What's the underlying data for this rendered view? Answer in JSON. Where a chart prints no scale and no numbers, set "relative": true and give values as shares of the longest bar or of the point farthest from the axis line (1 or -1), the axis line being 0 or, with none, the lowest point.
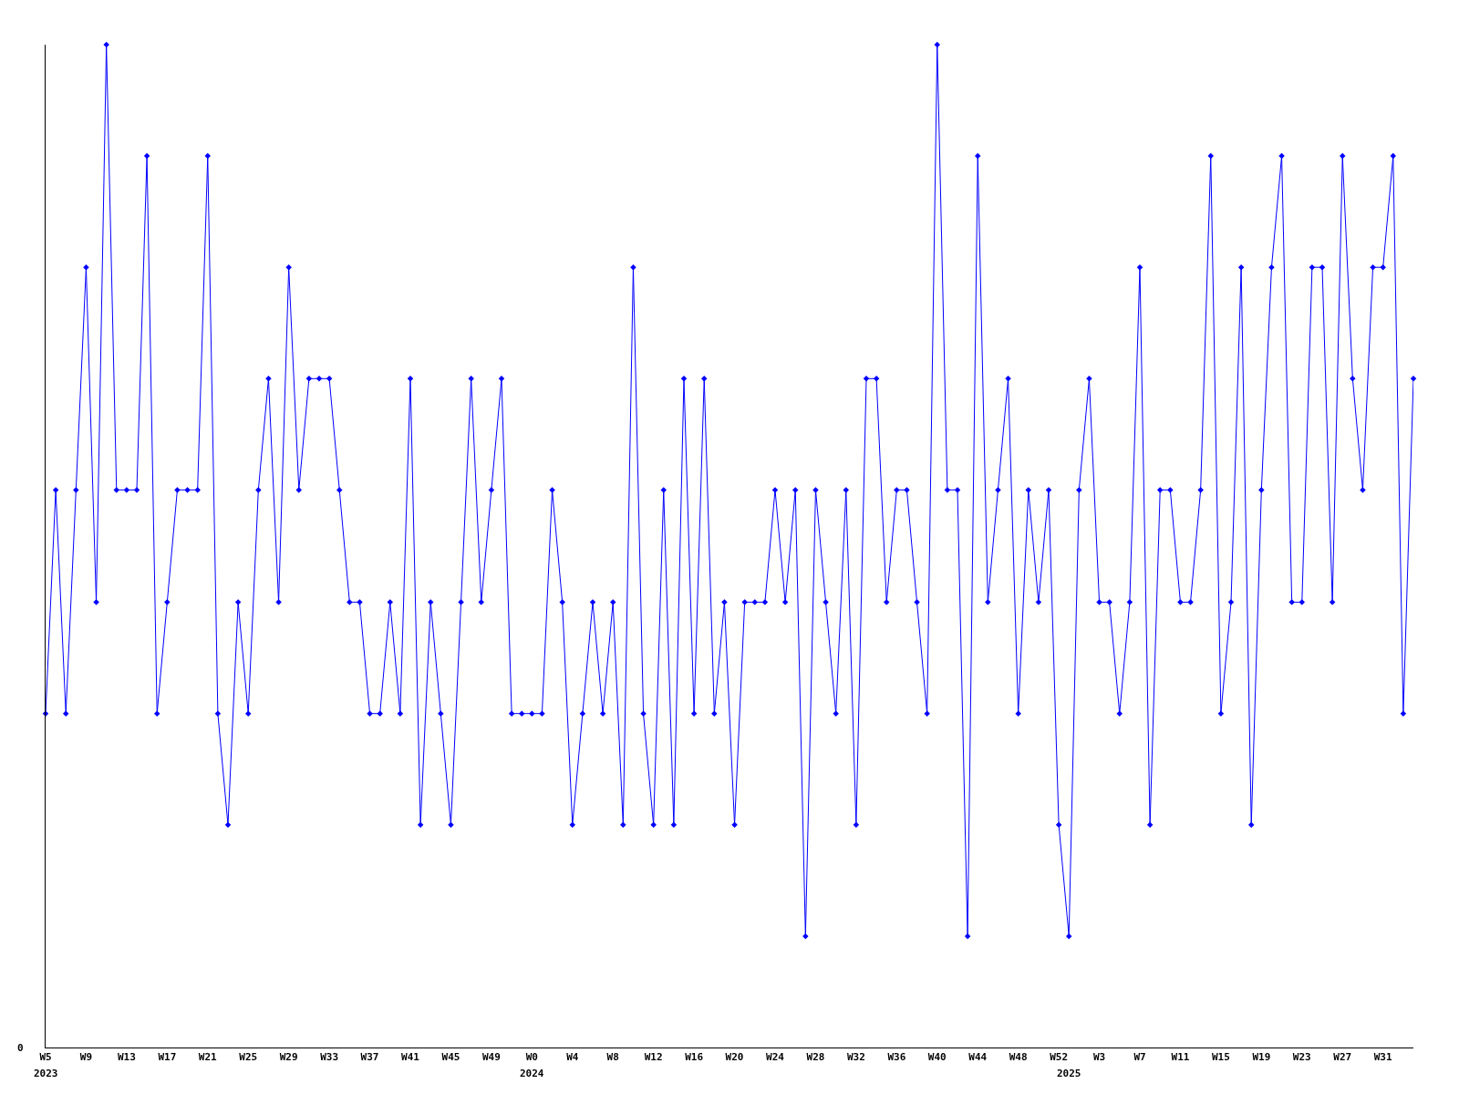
{
  "chart_data": {
    "type": "line",
    "relative": true,
    "marker": "diamond",
    "line_style": "solid",
    "legend": false,
    "annotations": [
      "0"
    ],
    "categories": [
      "W5\n2023",
      null,
      null,
      null,
      "W9",
      null,
      null,
      null,
      "W13",
      null,
      null,
      null,
      "W17",
      null,
      null,
      null,
      "W21",
      null,
      null,
      null,
      "W25",
      null,
      null,
      null,
      "W29",
      null,
      null,
      null,
      "W33",
      null,
      null,
      null,
      "W37",
      null,
      null,
      null,
      "W41",
      null,
      null,
      null,
      "W45",
      null,
      null,
      null,
      "W49",
      null,
      null,
      null,
      "W0\n2024",
      null,
      null,
      null,
      "W4",
      null,
      null,
      null,
      "W8",
      null,
      null,
      null,
      "W12",
      null,
      null,
      null,
      "W16",
      null,
      null,
      null,
      "W20",
      null,
      null,
      null,
      "W24",
      null,
      null,
      null,
      "W28",
      null,
      null,
      null,
      "W32",
      null,
      null,
      null,
      "W36",
      null,
      null,
      null,
      "W40",
      null,
      null,
      null,
      "W44",
      null,
      null,
      null,
      "W48",
      null,
      null,
      null,
      "W52",
      "\n2025",
      null,
      null,
      "W3",
      null,
      null,
      null,
      "W7",
      null,
      null,
      null,
      "W11",
      null,
      null,
      null,
      "W15",
      null,
      null,
      null,
      "W19",
      null,
      null,
      null,
      "W23",
      null,
      null,
      null,
      "W27",
      null,
      null,
      null,
      "W31",
      null,
      null,
      null
    ],
    "series": [
      {
        "color": "#0000ff",
        "values": [
          0.333,
          0.556,
          0.333,
          0.556,
          0.778,
          0.444,
          1,
          0.556,
          0.556,
          0.556,
          0.889,
          0.333,
          0.444,
          0.556,
          0.556,
          0.556,
          0.889,
          0.333,
          0.222,
          0.444,
          0.333,
          0.556,
          0.667,
          0.444,
          0.778,
          0.556,
          0.667,
          0.667,
          0.667,
          0.556,
          0.444,
          0.444,
          0.333,
          0.333,
          0.444,
          0.333,
          0.667,
          0.222,
          0.444,
          0.333,
          0.222,
          0.444,
          0.667,
          0.444,
          0.556,
          0.667,
          0.333,
          0.333,
          0.333,
          0.333,
          0.556,
          0.444,
          0.222,
          0.333,
          0.444,
          0.333,
          0.444,
          0.222,
          0.778,
          0.333,
          0.222,
          0.556,
          0.222,
          0.667,
          0.333,
          0.667,
          0.333,
          0.444,
          0.222,
          0.444,
          0.444,
          0.444,
          0.556,
          0.444,
          0.556,
          0.111,
          0.556,
          0.444,
          0.333,
          0.556,
          0.222,
          0.667,
          0.667,
          0.444,
          0.556,
          0.556,
          0.444,
          0.333,
          1,
          0.556,
          0.556,
          0.111,
          0.889,
          0.444,
          0.556,
          0.667,
          0.333,
          0.556,
          0.444,
          0.556,
          0.222,
          0.111,
          0.556,
          0.667,
          0.444,
          0.444,
          0.333,
          0.444,
          0.778,
          0.222,
          0.556,
          0.556,
          0.444,
          0.444,
          0.556,
          0.889,
          0.333,
          0.444,
          0.778,
          0.222,
          0.556,
          0.778,
          0.889,
          0.444,
          0.444,
          0.778,
          0.778,
          0.444,
          0.889,
          0.667,
          0.556,
          0.778,
          0.778,
          0.889,
          0.333,
          0.667
        ]
      }
    ]
  }
}
